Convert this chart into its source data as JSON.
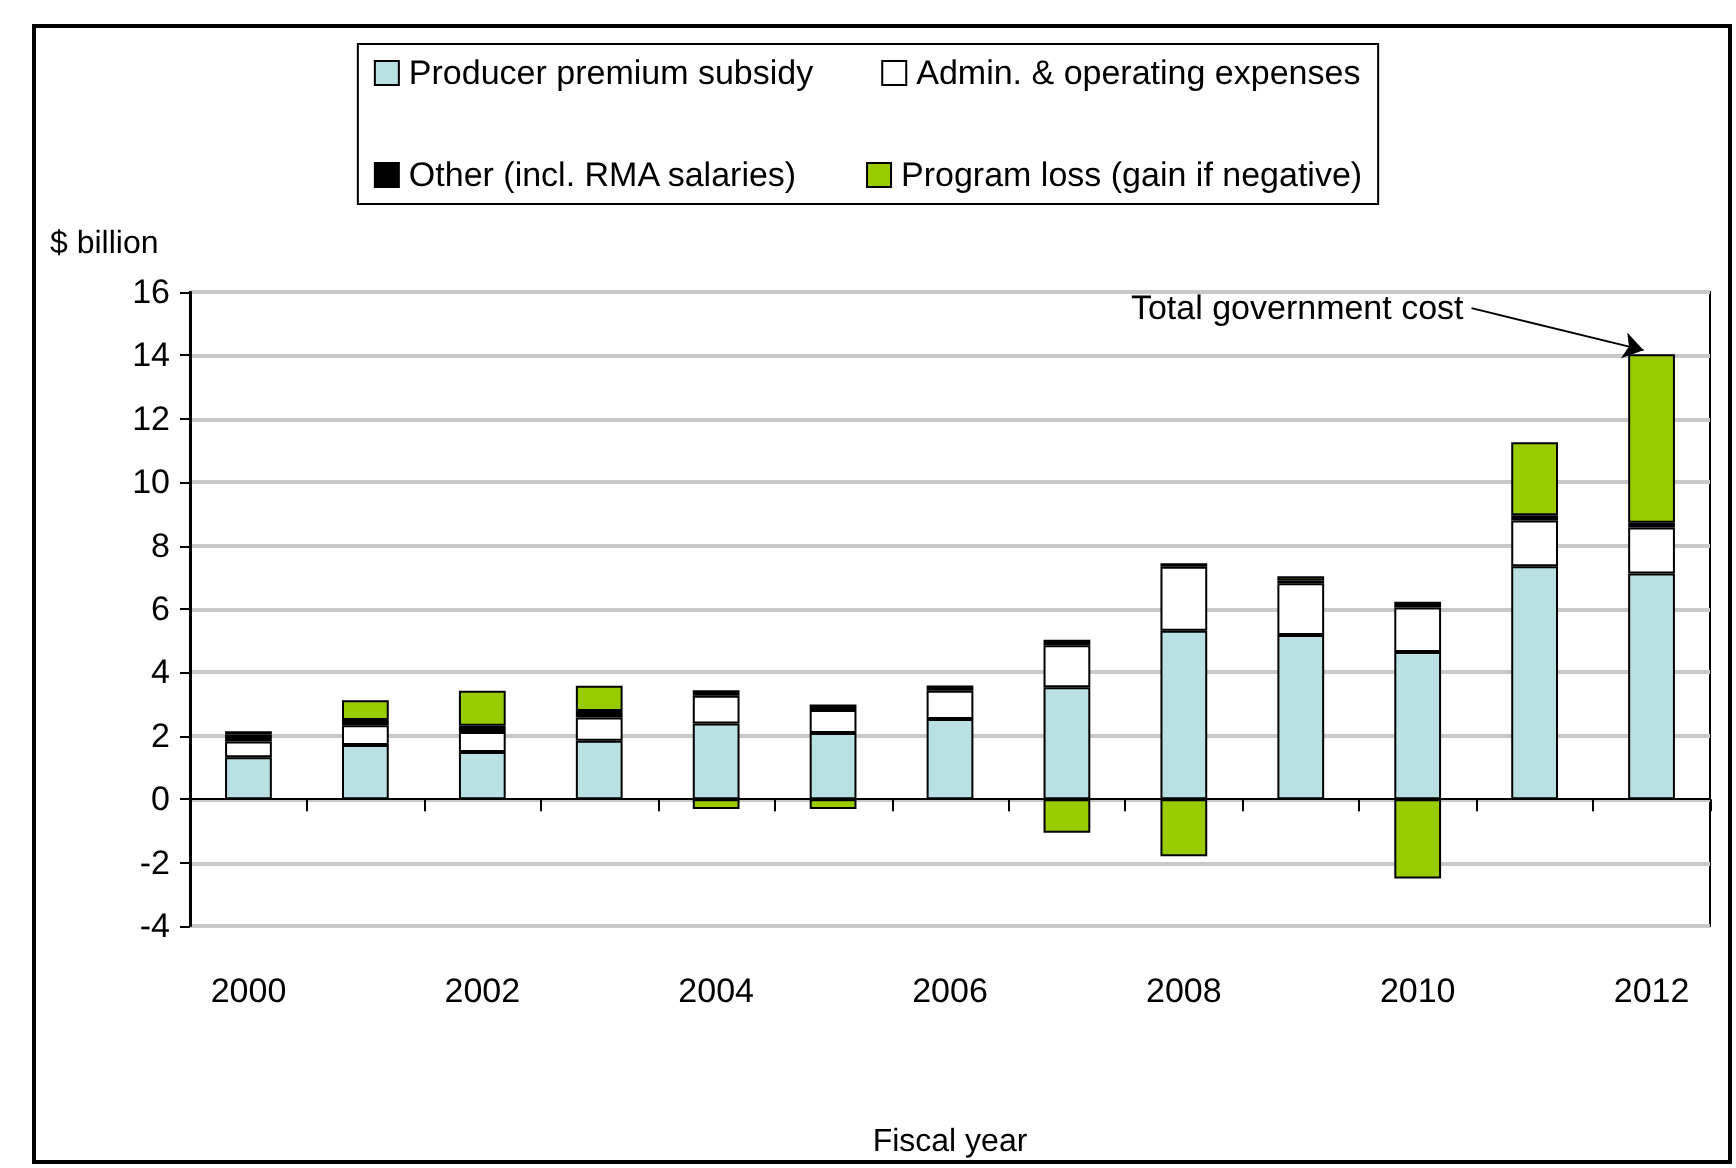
{
  "chart_data": {
    "type": "bar",
    "stacked": true,
    "xlabel": "Fiscal year",
    "ylabel": "$ billion",
    "categories": [
      "2000",
      null,
      "2002",
      null,
      "2004",
      null,
      "2006",
      null,
      "2008",
      null,
      "2010",
      null,
      "2012"
    ],
    "series": [
      {
        "name": "Producer premium subsidy",
        "color": "#b9e0e3",
        "values": [
          1.32,
          1.71,
          1.49,
          1.84,
          2.39,
          2.09,
          2.53,
          3.53,
          5.31,
          5.18,
          4.64,
          7.35,
          7.12
        ]
      },
      {
        "name": "Admin. & operating expenses",
        "color": "#ffffff",
        "values": [
          0.5,
          0.62,
          0.63,
          0.74,
          0.87,
          0.72,
          0.89,
          1.33,
          2.02,
          1.63,
          1.41,
          1.44,
          1.45
        ]
      },
      {
        "name": "Other (incl. RMA salaries)",
        "color": "#000000",
        "values": [
          0.22,
          0.17,
          0.2,
          0.2,
          0.18,
          0.18,
          0.17,
          0.17,
          0.11,
          0.09,
          0.18,
          0.17,
          0.15
        ]
      },
      {
        "name": "Program loss (gain if negative)",
        "color": "#99cc00",
        "values": [
          0.1,
          0.62,
          1.1,
          0.8,
          -0.31,
          -0.31,
          null,
          -1.06,
          -1.8,
          0.13,
          -2.5,
          2.3,
          5.32
        ]
      }
    ],
    "ylim": [
      -4,
      16
    ],
    "yticks": [
      -4,
      -2,
      0,
      2,
      4,
      6,
      8,
      10,
      12,
      14,
      16
    ],
    "grid": "y",
    "legend": "top",
    "annotations": [
      {
        "text": "Total government cost",
        "x": "2012",
        "y": 14.04
      }
    ]
  }
}
